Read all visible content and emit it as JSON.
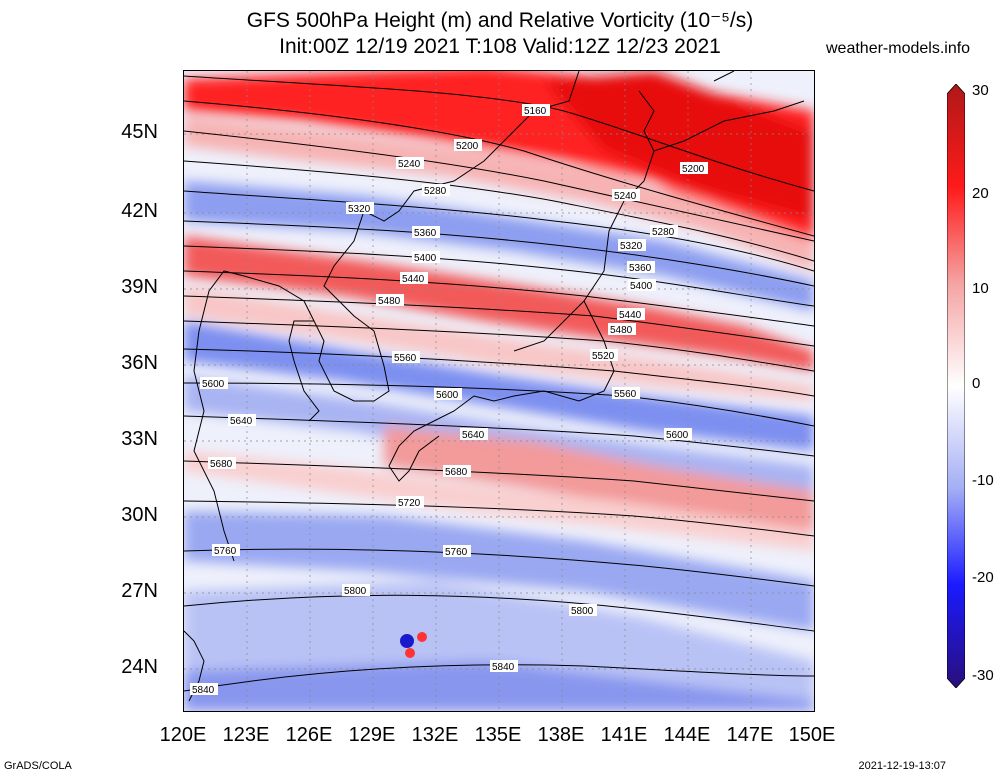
{
  "header": {
    "title_line1": "GFS 500hPa Height (m) and Relative Vorticity (10⁻⁵/s)",
    "title_line2": "Init:00Z 12/19 2021 T:108 Valid:12Z 12/23 2021",
    "site": "weather-models.info"
  },
  "footer": {
    "left": "GrADS/COLA",
    "right": "2021-12-19-13:07"
  },
  "axes": {
    "lat_labels": [
      "45N",
      "42N",
      "39N",
      "36N",
      "33N",
      "30N",
      "27N",
      "24N"
    ],
    "lon_labels": [
      "120E",
      "123E",
      "126E",
      "129E",
      "132E",
      "135E",
      "138E",
      "141E",
      "144E",
      "147E",
      "150E"
    ]
  },
  "colorbar": {
    "labels": [
      "30",
      "20",
      "10",
      "0",
      "-10",
      "-20",
      "-30"
    ],
    "colors": {
      "max": "#b01818",
      "pos_high": "#ff1a1a",
      "pos_low": "#f5a3a3",
      "zero": "#ffffff",
      "neg_low": "#a3aef5",
      "neg_high": "#1a1aff",
      "min": "#2a0f7a"
    }
  },
  "contours": {
    "labels": [
      "5160",
      "5200",
      "5200",
      "5240",
      "5240",
      "5280",
      "5280",
      "5320",
      "5320",
      "5360",
      "5360",
      "5400",
      "5400",
      "5440",
      "5440",
      "5480",
      "5480",
      "5520",
      "5560",
      "5560",
      "5600",
      "5600",
      "5600",
      "5640",
      "5640",
      "5680",
      "5680",
      "5720",
      "5760",
      "5760",
      "5800",
      "5800",
      "5840",
      "5840"
    ]
  }
}
